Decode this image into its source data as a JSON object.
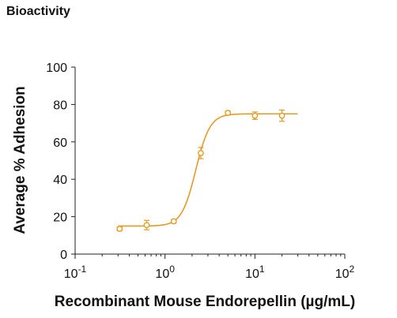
{
  "header": {
    "title": "Bioactivity"
  },
  "colors": {
    "series": "#E39B26",
    "axis": "#222222"
  },
  "chart_data": {
    "type": "scatter",
    "title": "Bioactivity",
    "xlabel": "Recombinant Mouse Endorepellin (µg/mL)",
    "ylabel": "Average % Adhesion",
    "xscale": "log",
    "xlim": [
      0.1,
      100
    ],
    "ylim": [
      0,
      100
    ],
    "xticks": [
      {
        "base": "10",
        "exp": "-1"
      },
      {
        "base": "10",
        "exp": "0"
      },
      {
        "base": "10",
        "exp": "1"
      },
      {
        "base": "10",
        "exp": "2"
      }
    ],
    "yticks": [
      "0",
      "20",
      "40",
      "60",
      "80",
      "100"
    ],
    "grid": false,
    "series": [
      {
        "points": [
          {
            "x": 0.3125,
            "y": 13.5,
            "err": 1.0
          },
          {
            "x": 0.625,
            "y": 15.5,
            "err": 2.5
          },
          {
            "x": 1.25,
            "y": 17.5,
            "err": 1.0
          },
          {
            "x": 2.5,
            "y": 54.0,
            "err": 3.0
          },
          {
            "x": 5.0,
            "y": 75.5,
            "err": 1.0
          },
          {
            "x": 10.0,
            "y": 74.0,
            "err": 2.0
          },
          {
            "x": 20.0,
            "y": 74.0,
            "err": 3.0
          }
        ],
        "fit": {
          "bottom": 15.0,
          "top": 75.0,
          "ec50": 2.2,
          "hill": 5.5
        }
      }
    ]
  }
}
